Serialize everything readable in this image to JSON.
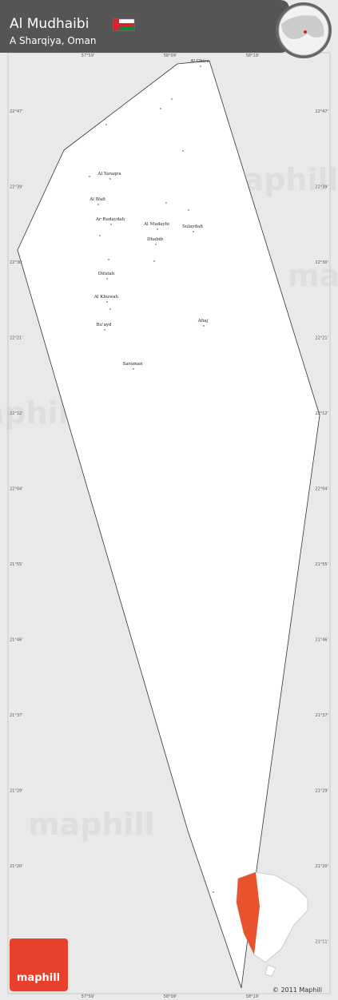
{
  "header": {
    "title": "Al Mudhaibi",
    "subtitle": "A Sharqiya, Oman"
  },
  "places": [
    "Al Ghiya",
    "Al Yaraqra",
    "Al Wafi",
    "Ar Rudaydah",
    "Al Mudaybi",
    "Sulaydah",
    "Dhabib",
    "Difatah",
    "Al Khuwah",
    "Bu'ayd",
    "Afiaj",
    "Saraman"
  ],
  "latitude_labels": [
    "22°47'",
    "22°39'",
    "22°30'",
    "22°21'",
    "22°12'",
    "22°04'",
    "21°55'",
    "21°46'",
    "21°37'",
    "21°29'",
    "21°20'",
    "21°11'"
  ],
  "longitude_labels": [
    "57°59'",
    "58°09'",
    "58°19'"
  ],
  "watermark": "maphill",
  "logo": "maphill",
  "copyright": "© 2011 Maphill"
}
